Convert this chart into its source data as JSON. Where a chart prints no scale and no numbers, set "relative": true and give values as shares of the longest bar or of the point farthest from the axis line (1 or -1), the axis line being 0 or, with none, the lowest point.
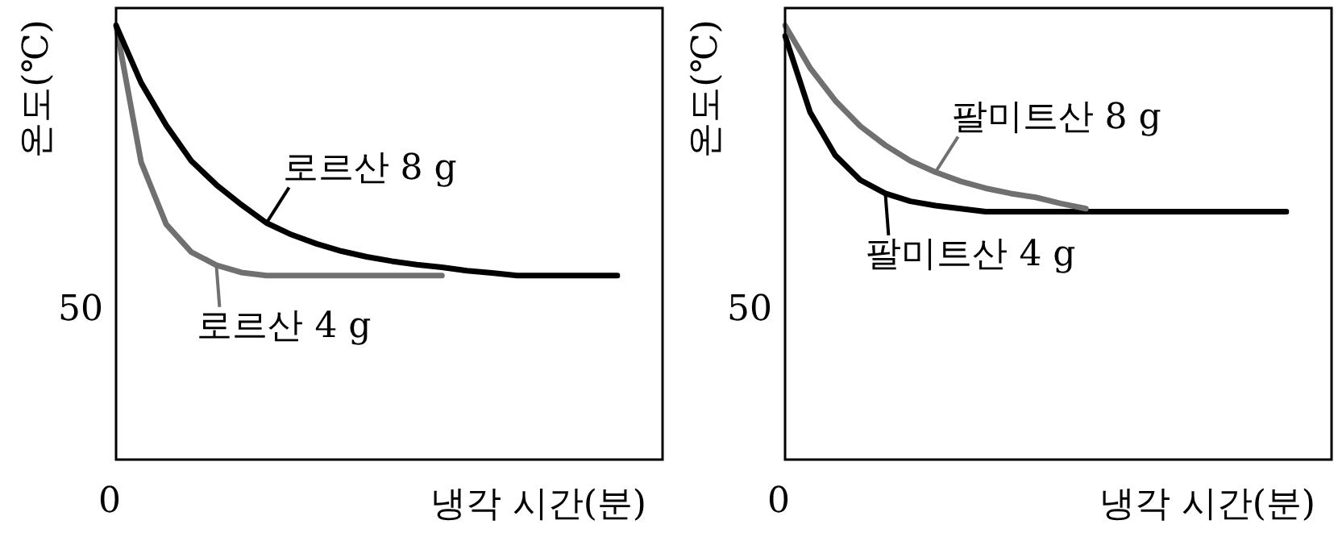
{
  "chart_data": [
    {
      "type": "line",
      "xlabel": "냉각 시간(분)",
      "ylabel": "온도(℃)",
      "relative": true,
      "categories": [
        null,
        null,
        null,
        null,
        null,
        null,
        null,
        null,
        null,
        null,
        null,
        null,
        null,
        null,
        null,
        null,
        null,
        null,
        null,
        null,
        null
      ],
      "series": [
        {
          "name": "로르산 8 g",
          "color": "#000000",
          "values": [
            1.0,
            0.868,
            0.77,
            0.688,
            0.633,
            0.587,
            0.545,
            0.518,
            0.497,
            0.48,
            0.467,
            0.457,
            0.449,
            0.443,
            0.435,
            0.43,
            0.424,
            0.424,
            0.424,
            0.424,
            0.424
          ]
        },
        {
          "name": "로르산 4 g",
          "color": "#707070",
          "values": [
            1.0,
            0.685,
            0.542,
            0.478,
            0.448,
            0.431,
            0.424,
            0.424,
            0.424,
            0.424,
            0.424,
            0.424,
            0.424,
            0.424,
            null,
            null,
            null,
            null,
            null,
            null,
            null
          ]
        }
      ],
      "annotations": [
        "50",
        "0"
      ]
    },
    {
      "type": "line",
      "xlabel": "냉각 시간(분)",
      "ylabel": "온도(℃)",
      "relative": true,
      "categories": [
        null,
        null,
        null,
        null,
        null,
        null,
        null,
        null,
        null,
        null,
        null,
        null,
        null,
        null,
        null,
        null,
        null,
        null,
        null,
        null,
        null
      ],
      "series": [
        {
          "name": "팔미트산 8 g",
          "color": "#707070",
          "values": [
            1.0,
            0.902,
            0.827,
            0.768,
            0.724,
            0.688,
            0.662,
            0.641,
            0.625,
            0.613,
            0.604,
            0.59,
            0.578,
            null,
            null,
            null,
            null,
            null,
            null,
            null,
            null
          ]
        },
        {
          "name": "팔미트산 4 g",
          "color": "#000000",
          "values": [
            0.976,
            0.8,
            0.701,
            0.644,
            0.613,
            0.595,
            0.585,
            0.578,
            0.571,
            0.571,
            0.571,
            0.571,
            0.571,
            0.571,
            0.571,
            0.571,
            0.571,
            0.571,
            0.571,
            0.571,
            0.571
          ]
        }
      ],
      "annotations": [
        "50",
        "0"
      ]
    }
  ]
}
